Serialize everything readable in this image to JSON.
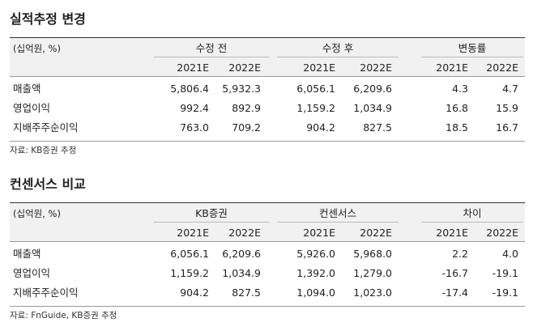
{
  "sections": [
    {
      "title": "실적추정 변경",
      "unit": "(십억원, %)",
      "groups": [
        "수정 전",
        "수정 후",
        "변동률"
      ],
      "years": [
        "2021E",
        "2022E",
        "2021E",
        "2022E",
        "2021E",
        "2022E"
      ],
      "rows": [
        [
          "매출액",
          "5,806.4",
          "5,932.3",
          "6,056.1",
          "6,209.6",
          "4.3",
          "4.7"
        ],
        [
          "영업이익",
          "992.4",
          "892.9",
          "1,159.2",
          "1,034.9",
          "16.8",
          "15.9"
        ],
        [
          "지배주주순이익",
          "763.0",
          "709.2",
          "904.2",
          "827.5",
          "18.5",
          "16.7"
        ]
      ],
      "source": "자료: KB증권 추정"
    },
    {
      "title": "컨센서스 비교",
      "unit": "(십억원, %)",
      "groups": [
        "KB증권",
        "컨센서스",
        "차이"
      ],
      "years": [
        "2021E",
        "2022E",
        "2021E",
        "2022E",
        "2021E",
        "2022E"
      ],
      "rows": [
        [
          "매출액",
          "6,056.1",
          "6,209.6",
          "5,926.0",
          "5,968.0",
          "2.2",
          "4.0"
        ],
        [
          "영업이익",
          "1,159.2",
          "1,034.9",
          "1,392.0",
          "1,279.0",
          "-16.7",
          "-19.1"
        ],
        [
          "지배주주순이익",
          "904.2",
          "827.5",
          "1,094.0",
          "1,023.0",
          "-17.4",
          "-19.1"
        ]
      ],
      "source": "자료: FnGuide, KB증권 추정"
    }
  ]
}
